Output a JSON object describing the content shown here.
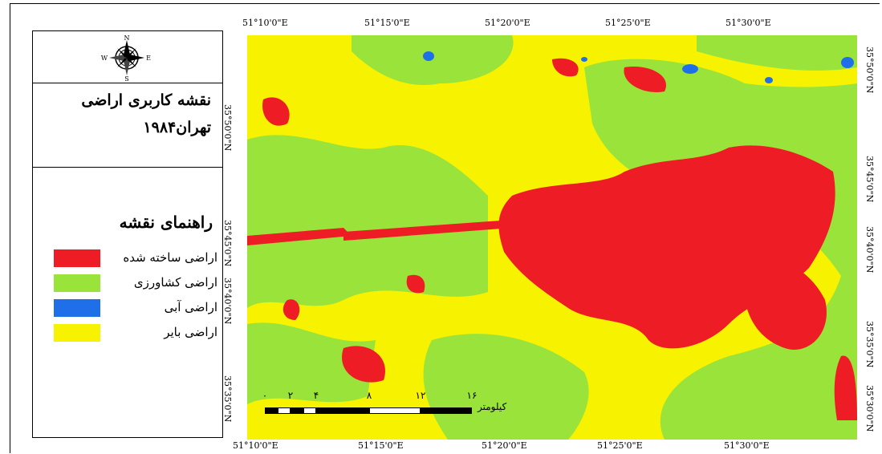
{
  "compass": {
    "n": "N",
    "s": "S",
    "e": "E",
    "w": "W"
  },
  "title": {
    "line1": "نقشه کاربری اراضی",
    "line2": "تهران۱۹۸۴"
  },
  "legend": {
    "title": "راهنمای نقشه",
    "items": [
      {
        "label": "اراضی ساخته شده",
        "color": "#ee1c24"
      },
      {
        "label": "اراضی کشاورزی",
        "color": "#99e33a"
      },
      {
        "label": "اراضی آبی",
        "color": "#1f6fe8"
      },
      {
        "label": "اراضی بایر",
        "color": "#f7f200"
      }
    ]
  },
  "axes": {
    "top": [
      "51°10'0\"E",
      "51°15'0\"E",
      "51°20'0\"E",
      "51°25'0\"E",
      "51°30'0\"E"
    ],
    "bottom": [
      "51°10'0\"E",
      "51°15'0\"E",
      "51°20'0\"E",
      "51°25'0\"E",
      "51°30'0\"E"
    ],
    "left": [
      "35°50'0\"N",
      "35°45'0\"N",
      "35°40'0\"N",
      "35°35'0\"N"
    ],
    "right": [
      "35°50'0\"N",
      "35°45'0\"N",
      "35°40'0\"N",
      "35°35'0\"N",
      "35°30'0\"N"
    ]
  },
  "scale": {
    "ticks": [
      "۰",
      "۲",
      "۴",
      "۸",
      "۱۲",
      "۱۶"
    ],
    "unit": "کیلومتر"
  }
}
